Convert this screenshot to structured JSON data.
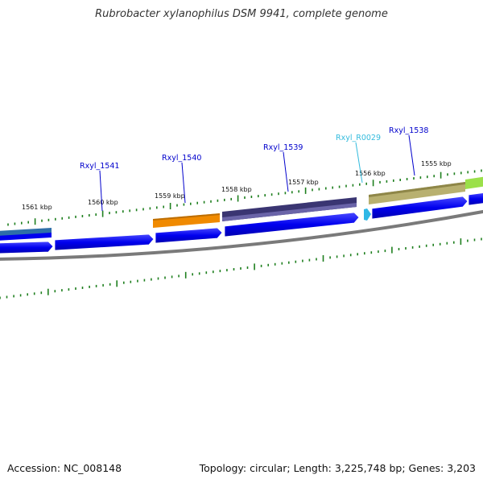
{
  "title": "Rubrobacter xylanophilus DSM 9941, complete genome",
  "accession": "Accession: NC_008148",
  "summary": "Topology: circular; Length: 3,225,748 bp; Genes: 3,203",
  "colors": {
    "cds_track": "#0000ee",
    "backbone": "#7a7a7a",
    "ticks": "#1e7f1e",
    "gene_label": "#0000cc",
    "rna_label": "#33bbdd",
    "gene_Rxyl_1541": "#2e6fa8",
    "gene_Rxyl_1540": "#f08a00",
    "gene_Rxyl_1539": "#3a3572",
    "gene_Rxyl_1538": "#b8b070",
    "gene_extra": "#9be04a"
  },
  "scale_labels": [
    "1561 kbp",
    "1560 kbp",
    "1559 kbp",
    "1558 kbp",
    "1557 kbp",
    "1556 kbp",
    "1555 kbp"
  ],
  "gene_labels": [
    {
      "id": "rxyl-1541",
      "text": "Rxyl_1541",
      "kind": "gene"
    },
    {
      "id": "rxyl-1540",
      "text": "Rxyl_1540",
      "kind": "gene"
    },
    {
      "id": "rxyl-1539",
      "text": "Rxyl_1539",
      "kind": "gene"
    },
    {
      "id": "rxyl-r0029",
      "text": "Rxyl_R0029",
      "kind": "rna"
    },
    {
      "id": "rxyl-1538",
      "text": "Rxyl_1538",
      "kind": "gene"
    }
  ]
}
